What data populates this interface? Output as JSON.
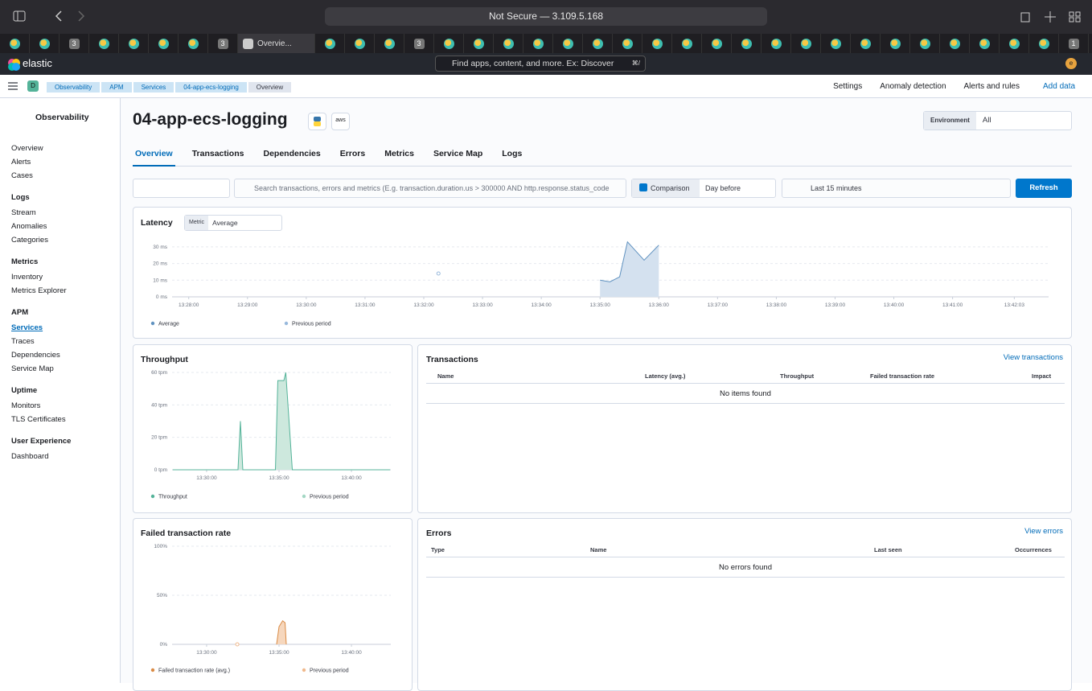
{
  "browser": {
    "address": "Not Secure — 3.109.5.168",
    "tabs": [
      null,
      null,
      "3",
      null,
      null,
      null,
      null,
      "3",
      "Overvie...",
      null,
      null,
      null,
      "3",
      null,
      null,
      null,
      null,
      null,
      null,
      null,
      null,
      null,
      null,
      null,
      null,
      null,
      null,
      null,
      null,
      null,
      null,
      null,
      null,
      null,
      "1"
    ],
    "active_tab": 8
  },
  "elastic_header": {
    "logo": "elastic",
    "search_placeholder": "Find apps, content, and more. Ex: Discover",
    "shortcut": "⌘/",
    "avatar": "e"
  },
  "breadcrumb_bar": {
    "space": "D",
    "crumbs": [
      "Observability",
      "APM",
      "Services",
      "04-app-ecs-logging",
      "Overview"
    ],
    "links": [
      "Settings",
      "Anomaly detection",
      "Alerts and rules"
    ],
    "add_data": "Add data"
  },
  "sidebar": {
    "title": "Observability",
    "groups": [
      {
        "title": null,
        "items": [
          "Overview",
          "Alerts",
          "Cases"
        ]
      },
      {
        "title": "Logs",
        "items": [
          "Stream",
          "Anomalies",
          "Categories"
        ]
      },
      {
        "title": "Metrics",
        "items": [
          "Inventory",
          "Metrics Explorer"
        ]
      },
      {
        "title": "APM",
        "items": [
          "Services",
          "Traces",
          "Dependencies",
          "Service Map"
        ]
      },
      {
        "title": "Uptime",
        "items": [
          "Monitors",
          "TLS Certificates"
        ]
      },
      {
        "title": "User Experience",
        "items": [
          "Dashboard"
        ]
      }
    ],
    "active": {
      "group": 3,
      "item": 0
    }
  },
  "header": {
    "title": "04-app-ecs-logging",
    "badge": "aws",
    "environment_label": "Environment",
    "environment_value": "All",
    "tabs": [
      "Overview",
      "Transactions",
      "Dependencies",
      "Errors",
      "Metrics",
      "Service Map",
      "Logs"
    ],
    "active_tab": 0
  },
  "filters": {
    "search_placeholder": "Search transactions, errors and metrics (E.g. transaction.duration.us > 300000 AND http.response.status_code",
    "comparison": "Comparison",
    "comparison_value": "Day before",
    "time_range": "Last 15 minutes",
    "refresh": "Refresh"
  },
  "latency": {
    "title": "Latency",
    "metric_label": "Metric",
    "metric_value": "Average",
    "chart_data": {
      "type": "area",
      "xlim": [
        "13:27:43",
        "13:42:38"
      ],
      "xticks": [
        "13:28:00",
        "13:29:00",
        "13:30:00",
        "13:31:00",
        "13:32:00",
        "13:33:00",
        "13:34:00",
        "13:35:00",
        "13:36:00",
        "13:37:00",
        "13:38:00",
        "13:39:00",
        "13:40:00",
        "13:41:00",
        "13:42:03"
      ],
      "ylim": [
        0,
        35
      ],
      "yticks": [
        {
          "value": 0,
          "label": "0 ms"
        },
        {
          "value": 10,
          "label": "10 ms"
        },
        {
          "value": 20,
          "label": "20 ms"
        },
        {
          "value": 30,
          "label": "30 ms"
        }
      ],
      "grid": true,
      "series": [
        {
          "name": "Average",
          "color": "#6092c0",
          "fill": "#d4e1ef",
          "x": [
            "13:35:00",
            "13:35:10",
            "13:35:20",
            "13:35:28",
            "13:35:45",
            "13:36:00"
          ],
          "values": [
            10,
            9,
            12,
            33,
            22,
            31
          ]
        },
        {
          "name": "Previous period",
          "color": "#98b9dc",
          "fill": "#e4edf7",
          "x": [
            "13:32:15"
          ],
          "values": [
            14
          ]
        }
      ]
    }
  },
  "throughput": {
    "title": "Throughput",
    "chart_data": {
      "type": "area",
      "xlim": [
        "13:27:37",
        "13:42:43"
      ],
      "xticks": [
        "13:30:00",
        "13:35:00",
        "13:40:00"
      ],
      "ylim": [
        0,
        60
      ],
      "yticks": [
        {
          "value": 0,
          "label": "0 tpm"
        },
        {
          "value": 20,
          "label": "20 tpm"
        },
        {
          "value": 40,
          "label": "40 tpm"
        },
        {
          "value": 60,
          "label": "60 tpm"
        }
      ],
      "grid": true,
      "series": [
        {
          "name": "Throughput",
          "color": "#54b399",
          "fill": "#cde8dd",
          "x": [
            "13:27:40",
            "13:32:10",
            "13:32:20",
            "13:32:30",
            "13:34:45",
            "13:34:55",
            "13:35:20",
            "13:35:28",
            "13:35:55",
            "13:42:40"
          ],
          "values": [
            0,
            0,
            30,
            0,
            0,
            55,
            55,
            60,
            0,
            0
          ]
        },
        {
          "name": "Previous period",
          "color": "#a3d7c4",
          "fill": "#e3f3ec",
          "x": [],
          "values": []
        }
      ]
    }
  },
  "transactions": {
    "title": "Transactions",
    "link": "View transactions",
    "columns": [
      "Name",
      "Latency (avg.)",
      "Throughput",
      "Failed transaction rate",
      "Impact"
    ],
    "empty": "No items found"
  },
  "failed_rate": {
    "title": "Failed transaction rate",
    "chart_data": {
      "type": "area",
      "xlim": [
        "13:27:37",
        "13:42:43"
      ],
      "xticks": [
        "13:30:00",
        "13:35:00",
        "13:40:00"
      ],
      "ylim": [
        0,
        100
      ],
      "yticks": [
        {
          "value": 0,
          "label": "0%"
        },
        {
          "value": 50,
          "label": "50%"
        },
        {
          "value": 100,
          "label": "100%"
        }
      ],
      "grid": true,
      "series": [
        {
          "name": "Failed transaction rate (avg.)",
          "color": "#da8b45",
          "fill": "#f6d7bd",
          "x": [
            "13:34:50",
            "13:35:00",
            "13:35:15",
            "13:35:25",
            "13:35:30"
          ],
          "values": [
            0,
            18,
            24,
            22,
            0
          ]
        },
        {
          "name": "Previous period",
          "color": "#f0b98d",
          "fill": "#fae6d6",
          "x": [
            "13:32:07"
          ],
          "values": [
            0
          ]
        }
      ]
    }
  },
  "errors": {
    "title": "Errors",
    "link": "View errors",
    "columns": [
      "Type",
      "Name",
      "Last seen",
      "Occurrences"
    ],
    "empty": "No errors found"
  }
}
